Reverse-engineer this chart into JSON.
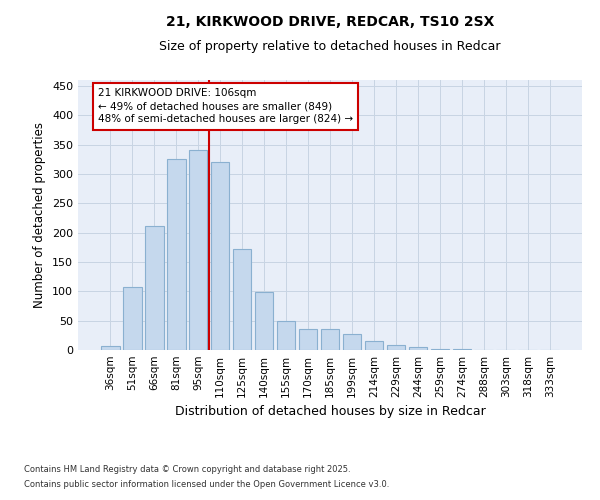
{
  "title_line1": "21, KIRKWOOD DRIVE, REDCAR, TS10 2SX",
  "title_line2": "Size of property relative to detached houses in Redcar",
  "xlabel": "Distribution of detached houses by size in Redcar",
  "ylabel": "Number of detached properties",
  "categories": [
    "36sqm",
    "51sqm",
    "66sqm",
    "81sqm",
    "95sqm",
    "110sqm",
    "125sqm",
    "140sqm",
    "155sqm",
    "170sqm",
    "185sqm",
    "199sqm",
    "214sqm",
    "229sqm",
    "244sqm",
    "259sqm",
    "274sqm",
    "288sqm",
    "303sqm",
    "318sqm",
    "333sqm"
  ],
  "values": [
    6,
    107,
    211,
    325,
    340,
    320,
    172,
    98,
    50,
    36,
    36,
    28,
    16,
    8,
    5,
    2,
    1,
    0,
    0,
    0,
    0
  ],
  "bar_color": "#c5d8ed",
  "bar_edge_color": "#8ab0d0",
  "grid_color": "#c8d4e3",
  "background_color": "#e8eef8",
  "vline_x_index": 5,
  "vline_color": "#cc0000",
  "annotation_line1": "21 KIRKWOOD DRIVE: 106sqm",
  "annotation_line2": "← 49% of detached houses are smaller (849)",
  "annotation_line3": "48% of semi-detached houses are larger (824) →",
  "footer_line1": "Contains HM Land Registry data © Crown copyright and database right 2025.",
  "footer_line2": "Contains public sector information licensed under the Open Government Licence v3.0.",
  "ylim": [
    0,
    460
  ],
  "yticks": [
    0,
    50,
    100,
    150,
    200,
    250,
    300,
    350,
    400,
    450
  ]
}
